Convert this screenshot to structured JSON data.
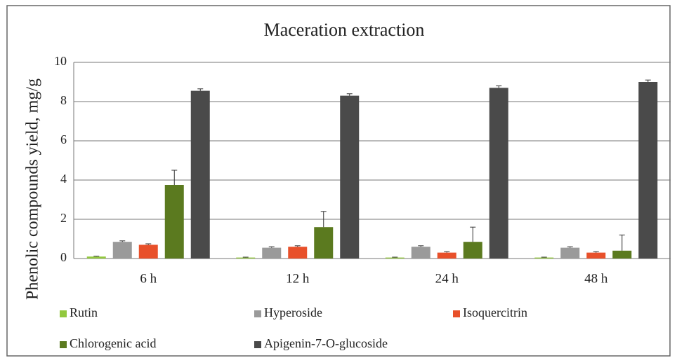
{
  "chart_data": {
    "type": "bar",
    "title": "Maceration extraction",
    "ylabel": "Phenolic compounds yield, mg/g",
    "categories": [
      "6 h",
      "12 h",
      "24 h",
      "48 h"
    ],
    "series": [
      {
        "name": "Rutin",
        "color": "#92c83e",
        "values": [
          0.1,
          0.05,
          0.05,
          0.05
        ],
        "errors": [
          0.02,
          0.02,
          0.02,
          0.02
        ]
      },
      {
        "name": "Hyperoside",
        "color": "#9a9a9a",
        "values": [
          0.85,
          0.55,
          0.6,
          0.55
        ],
        "errors": [
          0.05,
          0.05,
          0.05,
          0.05
        ]
      },
      {
        "name": "Isoquercitrin",
        "color": "#e8502a",
        "values": [
          0.7,
          0.6,
          0.3,
          0.3
        ],
        "errors": [
          0.05,
          0.05,
          0.05,
          0.05
        ]
      },
      {
        "name": "Chlorogenic acid",
        "color": "#5b7a1f",
        "values": [
          3.75,
          1.6,
          0.85,
          0.4
        ],
        "errors": [
          0.75,
          0.8,
          0.75,
          0.8
        ]
      },
      {
        "name": "Apigenin-7-O-glucoside",
        "color": "#4a4a4a",
        "values": [
          8.55,
          8.3,
          8.7,
          9.0
        ],
        "errors": [
          0.1,
          0.1,
          0.1,
          0.1
        ]
      }
    ],
    "ylim": [
      0,
      10
    ],
    "yticks": [
      0,
      2,
      4,
      6,
      8,
      10
    ],
    "grid": true,
    "legend": "bottom"
  }
}
